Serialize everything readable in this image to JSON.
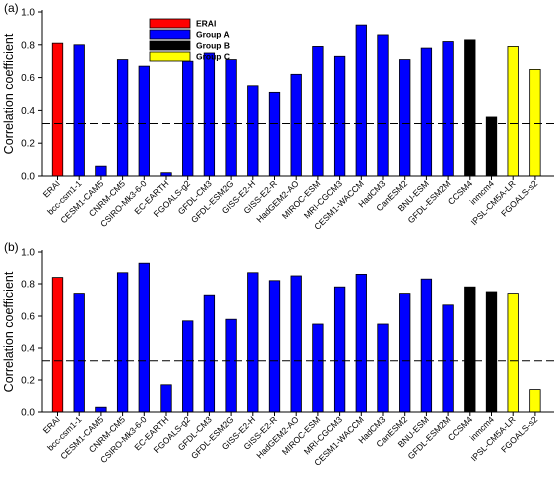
{
  "chart_data": [
    {
      "type": "bar",
      "panel_label": "(a)",
      "ylabel": "Correlation coefficient",
      "ylim": [
        0,
        1.0
      ],
      "yticks": [
        "0.0",
        "0.2",
        "0.4",
        "0.6",
        "0.8",
        "1.0"
      ],
      "reference_line": 0.32,
      "legend": {
        "placement": "top-left",
        "entries": [
          {
            "name": "ERAI",
            "color": "#ff0000"
          },
          {
            "name": "Group A",
            "color": "#0000ff"
          },
          {
            "name": "Group B",
            "color": "#000000"
          },
          {
            "name": "Group C",
            "color": "#ffff00"
          }
        ]
      },
      "categories": [
        "ERAI",
        "bcc-csm1-1",
        "CESM1-CAM5",
        "CNRM-CM5",
        "CSIRO-Mk3-6-0",
        "EC-EARTH",
        "FGOALS-g2",
        "GFDL-CM3",
        "GFDL-ESM2G",
        "GISS-E2-H",
        "GISS-E2-R",
        "HadGEM2-AO",
        "MIROC-ESM",
        "MRI-CGCM3",
        "CESM1-WACCM",
        "HadCM3",
        "CanESM2",
        "BNU-ESM",
        "GFDL-ESM2M",
        "CCSM4",
        "inmcm4",
        "IPSL-CM5A-LR",
        "FGOALS-s2"
      ],
      "groups": [
        "ERAI",
        "Group A",
        "Group A",
        "Group A",
        "Group A",
        "Group A",
        "Group A",
        "Group A",
        "Group A",
        "Group A",
        "Group A",
        "Group A",
        "Group A",
        "Group A",
        "Group A",
        "Group A",
        "Group A",
        "Group A",
        "Group A",
        "Group B",
        "Group B",
        "Group C",
        "Group C"
      ],
      "values": [
        0.81,
        0.8,
        0.06,
        0.71,
        0.67,
        0.02,
        0.7,
        0.75,
        0.71,
        0.55,
        0.51,
        0.62,
        0.79,
        0.73,
        0.92,
        0.86,
        0.71,
        0.78,
        0.82,
        0.83,
        0.36,
        0.79,
        0.65
      ]
    },
    {
      "type": "bar",
      "panel_label": "(b)",
      "ylabel": "Correlation coefficient",
      "ylim": [
        0,
        1.0
      ],
      "yticks": [
        "0.0",
        "0.2",
        "0.4",
        "0.6",
        "0.8",
        "1.0"
      ],
      "reference_line": 0.32,
      "categories": [
        "ERAI",
        "bcc-csm1-1",
        "CESM1-CAM5",
        "CNRM-CM5",
        "CSIRO-Mk3-6-0",
        "EC-EARTH",
        "FGOALS-g2",
        "GFDL-CM3",
        "GFDL-ESM2G",
        "GISS-E2-H",
        "GISS-E2-R",
        "HadGEM2-AO",
        "MIROC-ESM",
        "MRI-CGCM3",
        "CESM1-WACCM",
        "HadCM3",
        "CanESM2",
        "BNU-ESM",
        "GFDL-ESM2M",
        "CCSM4",
        "inmcm4",
        "IPSL-CM5A-LR",
        "FGOALS-s2"
      ],
      "groups": [
        "ERAI",
        "Group A",
        "Group A",
        "Group A",
        "Group A",
        "Group A",
        "Group A",
        "Group A",
        "Group A",
        "Group A",
        "Group A",
        "Group A",
        "Group A",
        "Group A",
        "Group A",
        "Group A",
        "Group A",
        "Group A",
        "Group A",
        "Group B",
        "Group B",
        "Group C",
        "Group C"
      ],
      "values": [
        0.84,
        0.74,
        0.03,
        0.87,
        0.93,
        0.17,
        0.57,
        0.73,
        0.58,
        0.87,
        0.82,
        0.85,
        0.55,
        0.78,
        0.86,
        0.55,
        0.74,
        0.83,
        0.67,
        0.78,
        0.75,
        0.74,
        0.14
      ]
    }
  ]
}
